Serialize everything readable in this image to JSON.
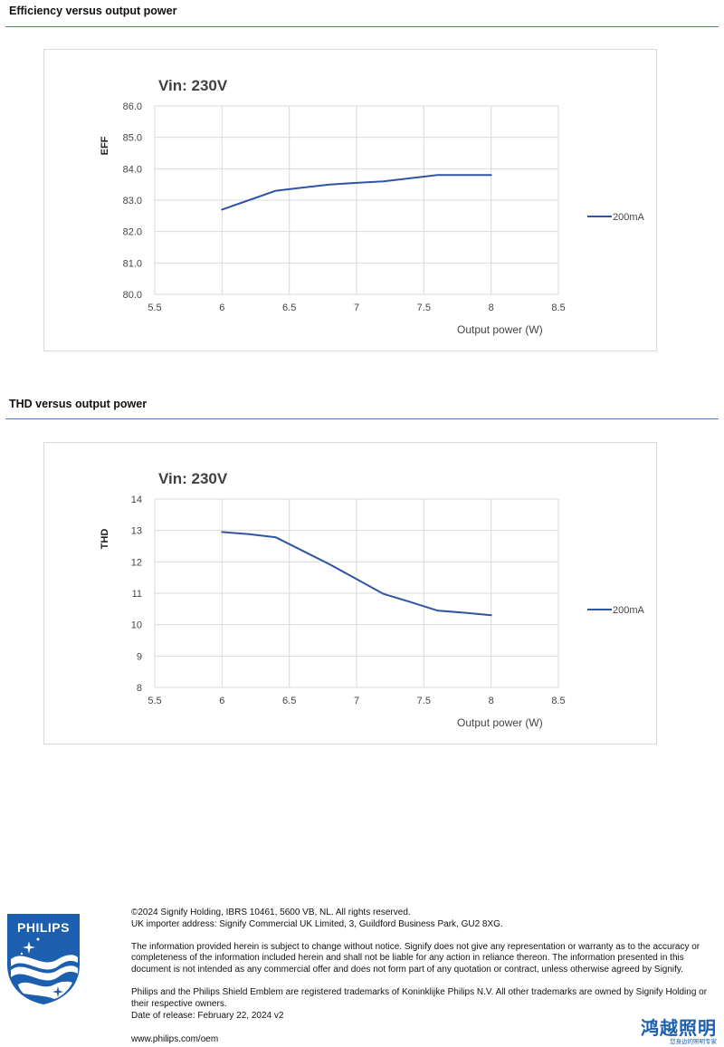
{
  "sections": [
    {
      "title": "Efficiency versus output power",
      "chart_data": {
        "type": "line",
        "title": "Vin: 230V",
        "xlabel": "Output power (W)",
        "ylabel": "EFF",
        "xlim": [
          5.5,
          8.5
        ],
        "ylim": [
          80.0,
          86.0
        ],
        "x_ticks": [
          "5.5",
          "6",
          "6.5",
          "7",
          "7.5",
          "8",
          "8.5"
        ],
        "y_ticks": [
          "80.0",
          "81.0",
          "82.0",
          "83.0",
          "84.0",
          "85.0",
          "86.0"
        ],
        "grid": true,
        "legend_position": "right",
        "series": [
          {
            "name": "200mA",
            "color": "#2e55a5",
            "x": [
              6.0,
              6.2,
              6.4,
              6.6,
              6.8,
              7.0,
              7.2,
              7.4,
              7.6,
              7.8,
              8.0
            ],
            "y": [
              82.7,
              83.0,
              83.3,
              83.4,
              83.5,
              83.55,
              83.6,
              83.7,
              83.8,
              83.8,
              83.8
            ]
          }
        ]
      }
    },
    {
      "title": "THD versus output power",
      "chart_data": {
        "type": "line",
        "title": "Vin: 230V",
        "xlabel": "Output power (W)",
        "ylabel": "THD",
        "xlim": [
          5.5,
          8.5
        ],
        "ylim": [
          8,
          14
        ],
        "x_ticks": [
          "5.5",
          "6",
          "6.5",
          "7",
          "7.5",
          "8",
          "8.5"
        ],
        "y_ticks": [
          "8",
          "9",
          "10",
          "11",
          "12",
          "13",
          "14"
        ],
        "grid": true,
        "legend_position": "right",
        "series": [
          {
            "name": "200mA",
            "color": "#2e55a5",
            "x": [
              6.0,
              6.2,
              6.4,
              6.6,
              6.8,
              7.0,
              7.2,
              7.4,
              7.6,
              7.8,
              8.0
            ],
            "y": [
              12.95,
              12.88,
              12.78,
              12.35,
              11.92,
              11.45,
              10.98,
              10.72,
              10.45,
              10.38,
              10.3
            ]
          }
        ]
      }
    }
  ],
  "footer": {
    "copyright": "©2024 Signify Holding, IBRS 10461, 5600 VB, NL. All rights reserved.",
    "importer": "UK importer address: Signify Commercial UK Limited, 3, Guildford Business Park, GU2 8XG.",
    "disclaimer": "The information provided herein is subject to change without notice. Signify does not give any representation or warranty as to the accuracy or completeness of the information included herein and shall not be liable for any action in reliance thereon. The information presented in this document is not intended as any commercial offer and does not form part of any quotation or contract, unless otherwise agreed by Signify.",
    "trademarks": "Philips and the Philips Shield Emblem are registered trademarks of Koninklijke Philips N.V. All other trademarks are owned by Signify Holding or their respective owners.",
    "release_date": "Date of release: February 22, 2024 v2",
    "website": "www.philips.com/oem"
  },
  "logo": {
    "text": "PHILIPS",
    "color": "#1c5fae"
  },
  "brand": {
    "name": "鸿越照明",
    "tagline": "您身边的照明专家",
    "color": "#1c5fae"
  }
}
